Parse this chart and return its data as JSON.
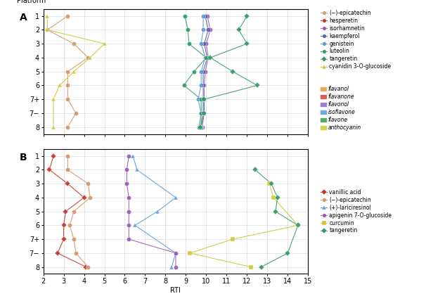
{
  "platform_y": [
    1,
    2,
    3,
    4,
    5,
    6,
    7,
    8,
    9
  ],
  "ytick_labels": [
    "1",
    "2",
    "3",
    "4",
    "5",
    "6",
    "7+",
    "7−",
    "8"
  ],
  "xlabel": "RTI",
  "xlim": [
    2,
    15
  ],
  "panel_A": {
    "epicatechin": {
      "color": "#d4956a",
      "marker": "o",
      "x": [
        3.2,
        2.2,
        3.5,
        4.2,
        3.2,
        3.2,
        3.2,
        3.6,
        3.2
      ]
    },
    "hesperetin": {
      "color": "#c0392b",
      "marker": "o",
      "x": [
        null,
        null,
        null,
        10.0,
        null,
        null,
        null,
        null,
        null
      ]
    },
    "isorhamnetin": {
      "color": "#9b59b6",
      "marker": "o",
      "x": [
        10.05,
        10.2,
        10.0,
        10.1,
        9.95,
        9.9,
        9.9,
        9.9,
        9.8
      ]
    },
    "kaempferol": {
      "color": "#5b5ea6",
      "marker": "o",
      "x": [
        9.95,
        10.1,
        9.9,
        10.05,
        9.85,
        9.85,
        9.85,
        9.85,
        9.75
      ]
    },
    "genistein": {
      "color": "#5b9bd5",
      "marker": "o",
      "x": [
        9.85,
        9.85,
        9.75,
        9.95,
        9.75,
        9.75,
        9.6,
        9.75,
        9.75
      ]
    },
    "luteolin": {
      "color": "#339966",
      "marker": "o",
      "x": [
        8.95,
        9.1,
        9.15,
        10.0,
        9.4,
        8.9,
        9.75,
        9.75,
        9.65
      ]
    },
    "tangeretin": {
      "color": "#339966",
      "marker": "D",
      "x": [
        12.0,
        11.6,
        12.0,
        10.2,
        11.3,
        12.5,
        9.9,
        9.9,
        9.7
      ]
    },
    "cyanidin": {
      "color": "#ccc831",
      "marker": "^",
      "x": [
        2.2,
        2.2,
        5.0,
        4.3,
        3.5,
        2.8,
        2.5,
        null,
        2.5
      ]
    }
  },
  "panel_B": {
    "vanillic_acid": {
      "color": "#c0392b",
      "marker": "D",
      "x": [
        2.5,
        2.3,
        3.2,
        4.0,
        3.1,
        3.0,
        3.0,
        2.7,
        4.1
      ]
    },
    "epicatechin": {
      "color": "#d4956a",
      "marker": "o",
      "x": [
        3.2,
        3.2,
        4.2,
        4.3,
        3.5,
        3.3,
        3.5,
        3.6,
        4.2
      ]
    },
    "lariciresinol": {
      "color": "#5b9bd5",
      "marker": "^",
      "x": [
        6.4,
        6.6,
        null,
        8.5,
        7.6,
        6.5,
        null,
        8.5,
        8.3
      ]
    },
    "apigenin": {
      "color": "#9b59b6",
      "marker": "o",
      "x": [
        6.2,
        6.1,
        6.1,
        6.2,
        6.2,
        6.2,
        6.2,
        8.5,
        8.5
      ]
    },
    "curcumin": {
      "color": "#ccc831",
      "marker": "s",
      "x": [
        null,
        null,
        13.1,
        13.3,
        null,
        14.5,
        11.3,
        9.2,
        12.2
      ]
    },
    "tangeretin": {
      "color": "#339966",
      "marker": "D",
      "x": [
        null,
        12.4,
        13.2,
        13.5,
        13.4,
        14.5,
        null,
        14.0,
        12.7
      ]
    }
  },
  "legend_A_compounds": [
    {
      "label": "(−)-epicatechin",
      "color": "#d4956a",
      "marker": "o"
    },
    {
      "label": "hesperetin",
      "color": "#c0392b",
      "marker": "o"
    },
    {
      "label": "isorhamnetin",
      "color": "#9b59b6",
      "marker": "o"
    },
    {
      "label": "kaempferol",
      "color": "#5b5ea6",
      "marker": "o"
    },
    {
      "label": "genistein",
      "color": "#5b9bd5",
      "marker": "o"
    },
    {
      "label": "luteolin",
      "color": "#339966",
      "marker": "o"
    },
    {
      "label": "tangeretin",
      "color": "#339966",
      "marker": "D"
    },
    {
      "label": "cyanidin 3-O-glucoside",
      "color": "#ccc831",
      "marker": "^"
    }
  ],
  "legend_A_classes": [
    {
      "label": "flavanol",
      "color": "#e8a85f"
    },
    {
      "label": "flavanone",
      "color": "#e05c5c"
    },
    {
      "label": "flavonol",
      "color": "#9b7fca"
    },
    {
      "label": "isoflavone",
      "color": "#6fabd4"
    },
    {
      "label": "flavone",
      "color": "#5da85d"
    },
    {
      "label": "anthocyanin",
      "color": "#d4d44a"
    }
  ],
  "legend_B_compounds": [
    {
      "label": "vanillic acid",
      "color": "#c0392b",
      "marker": "D"
    },
    {
      "label": "(−)-epicatechin",
      "color": "#d4956a",
      "marker": "o"
    },
    {
      "label": "(+)-lariciresinol",
      "color": "#5b9bd5",
      "marker": "^"
    },
    {
      "label": "apigenin 7-O-glucoside",
      "color": "#9b59b6",
      "marker": "o"
    },
    {
      "label": "curcumin",
      "color": "#ccc831",
      "marker": "s"
    },
    {
      "label": "tangeretin",
      "color": "#339966",
      "marker": "D"
    }
  ]
}
